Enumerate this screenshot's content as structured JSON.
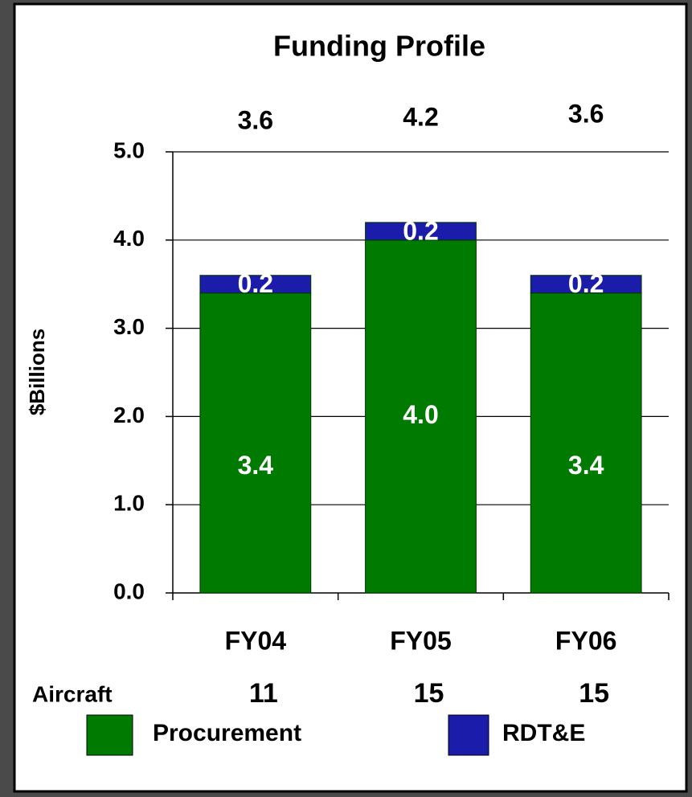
{
  "chart_data": {
    "type": "stacked_bar",
    "title": "Funding Profile",
    "y_label": "$Billions",
    "categories": [
      "FY04",
      "FY05",
      "FY06"
    ],
    "series": [
      {
        "name": "Procurement",
        "color": "#007a00",
        "values": [
          3.4,
          4.0,
          3.4
        ],
        "value_labels": [
          "3.4",
          "4.0",
          "3.4"
        ]
      },
      {
        "name": "RDT&E",
        "color": "#1c1caa",
        "values": [
          0.2,
          0.2,
          0.2
        ]
      }
    ],
    "totals": [
      3.6,
      4.2,
      3.6
    ],
    "aircraft": {
      "label": "Aircraft",
      "values": [
        11,
        15,
        15
      ]
    },
    "ylim": [
      0,
      5
    ],
    "yticks": [
      {
        "value": 0,
        "label": "0.0"
      },
      {
        "value": 1,
        "label": "1.0"
      },
      {
        "value": 2,
        "label": "2.0"
      },
      {
        "value": 3,
        "label": "3.0"
      },
      {
        "value": 4,
        "label": "4.0"
      },
      {
        "value": 5,
        "label": "5.0"
      }
    ],
    "grid": true
  }
}
